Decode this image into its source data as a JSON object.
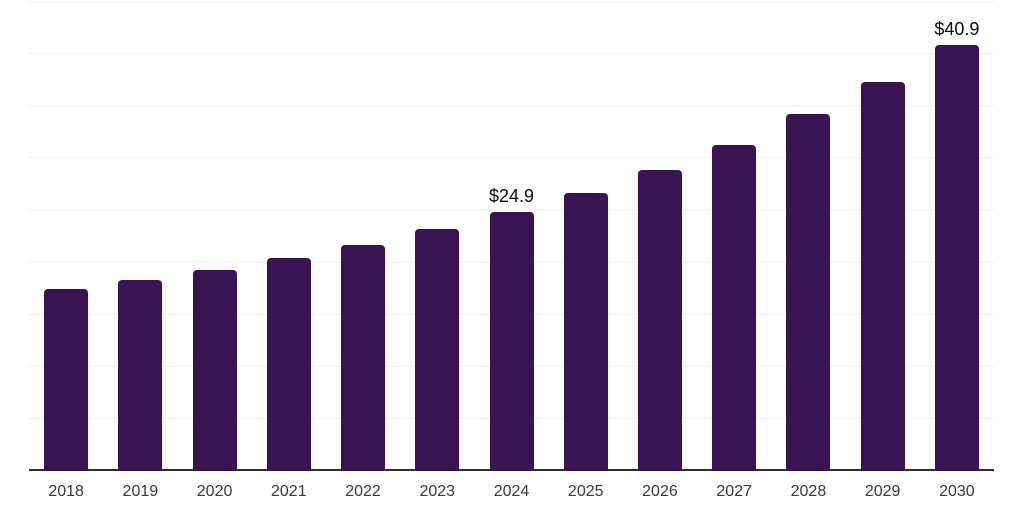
{
  "chart_data": {
    "type": "bar",
    "title": "",
    "xlabel": "",
    "ylabel": "",
    "categories": [
      "2018",
      "2019",
      "2020",
      "2021",
      "2022",
      "2023",
      "2024",
      "2025",
      "2026",
      "2027",
      "2028",
      "2029",
      "2030"
    ],
    "values": [
      17.5,
      18.3,
      19.3,
      20.4,
      21.7,
      23.2,
      24.9,
      26.7,
      28.9,
      31.3,
      34.3,
      37.3,
      40.9
    ],
    "value_labels": {
      "2024": "$24.9",
      "2030": "$40.9"
    },
    "ylim": [
      0,
      45
    ],
    "grid_step": 5,
    "grid_on": true,
    "legend": "none",
    "y_axis_tick_labels_visible": false,
    "colors": {
      "bar": "#3a1353",
      "grid": "#f0eff1",
      "axis": "#2f2f2f",
      "tick_label": "#3a3a3a",
      "data_label": "#0a0a0a",
      "background": "#ffffff"
    }
  }
}
